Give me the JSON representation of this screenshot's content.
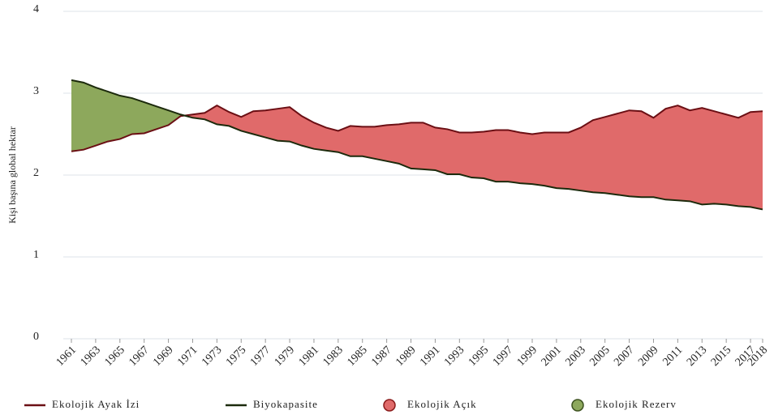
{
  "chart_data": {
    "type": "line",
    "y_label": "Kişi başına global hektar",
    "x": [
      1961,
      1962,
      1963,
      1964,
      1965,
      1966,
      1967,
      1968,
      1969,
      1970,
      1971,
      1972,
      1973,
      1974,
      1975,
      1976,
      1977,
      1978,
      1979,
      1980,
      1981,
      1982,
      1983,
      1984,
      1985,
      1986,
      1987,
      1988,
      1989,
      1990,
      1991,
      1992,
      1993,
      1994,
      1995,
      1996,
      1997,
      1998,
      1999,
      2000,
      2001,
      2002,
      2003,
      2004,
      2005,
      2006,
      2007,
      2008,
      2009,
      2010,
      2011,
      2012,
      2013,
      2014,
      2015,
      2016,
      2017,
      2018
    ],
    "series": [
      {
        "name": "Ekolojik Ayak İzi",
        "color": "#6b0f14",
        "values": [
          2.29,
          2.31,
          2.36,
          2.41,
          2.44,
          2.5,
          2.51,
          2.56,
          2.61,
          2.72,
          2.74,
          2.76,
          2.85,
          2.77,
          2.71,
          2.78,
          2.79,
          2.81,
          2.83,
          2.72,
          2.64,
          2.58,
          2.54,
          2.6,
          2.59,
          2.59,
          2.61,
          2.62,
          2.64,
          2.64,
          2.58,
          2.56,
          2.52,
          2.52,
          2.53,
          2.55,
          2.55,
          2.52,
          2.5,
          2.52,
          2.52,
          2.52,
          2.58,
          2.67,
          2.71,
          2.75,
          2.79,
          2.78,
          2.7,
          2.81,
          2.85,
          2.79,
          2.82,
          2.78,
          2.74,
          2.7,
          2.77,
          2.78
        ]
      },
      {
        "name": "Biyokapasite",
        "color": "#1c2a0c",
        "values": [
          3.16,
          3.13,
          3.07,
          3.02,
          2.97,
          2.94,
          2.89,
          2.84,
          2.79,
          2.74,
          2.7,
          2.68,
          2.62,
          2.6,
          2.54,
          2.5,
          2.46,
          2.42,
          2.41,
          2.36,
          2.32,
          2.3,
          2.28,
          2.23,
          2.23,
          2.2,
          2.17,
          2.14,
          2.08,
          2.07,
          2.06,
          2.01,
          2.01,
          1.97,
          1.96,
          1.92,
          1.92,
          1.9,
          1.89,
          1.87,
          1.84,
          1.83,
          1.81,
          1.79,
          1.78,
          1.76,
          1.74,
          1.73,
          1.73,
          1.7,
          1.69,
          1.68,
          1.64,
          1.65,
          1.64,
          1.62,
          1.61,
          1.58
        ]
      }
    ],
    "areas": [
      {
        "name": "Ekolojik Açık",
        "color": "#e06a6a"
      },
      {
        "name": "Ekolojik Rezerv",
        "color": "#8da85c"
      }
    ],
    "xlim": [
      1961,
      2018
    ],
    "xticks": [
      1961,
      1963,
      1965,
      1967,
      1969,
      1971,
      1973,
      1975,
      1977,
      1979,
      1981,
      1983,
      1985,
      1987,
      1989,
      1991,
      1993,
      1995,
      1997,
      1999,
      2001,
      2003,
      2005,
      2007,
      2009,
      2011,
      2013,
      2015,
      2017,
      2018
    ],
    "ylim": [
      0,
      4
    ],
    "yticks": [
      0,
      1,
      2,
      3,
      4
    ],
    "grid": true
  }
}
